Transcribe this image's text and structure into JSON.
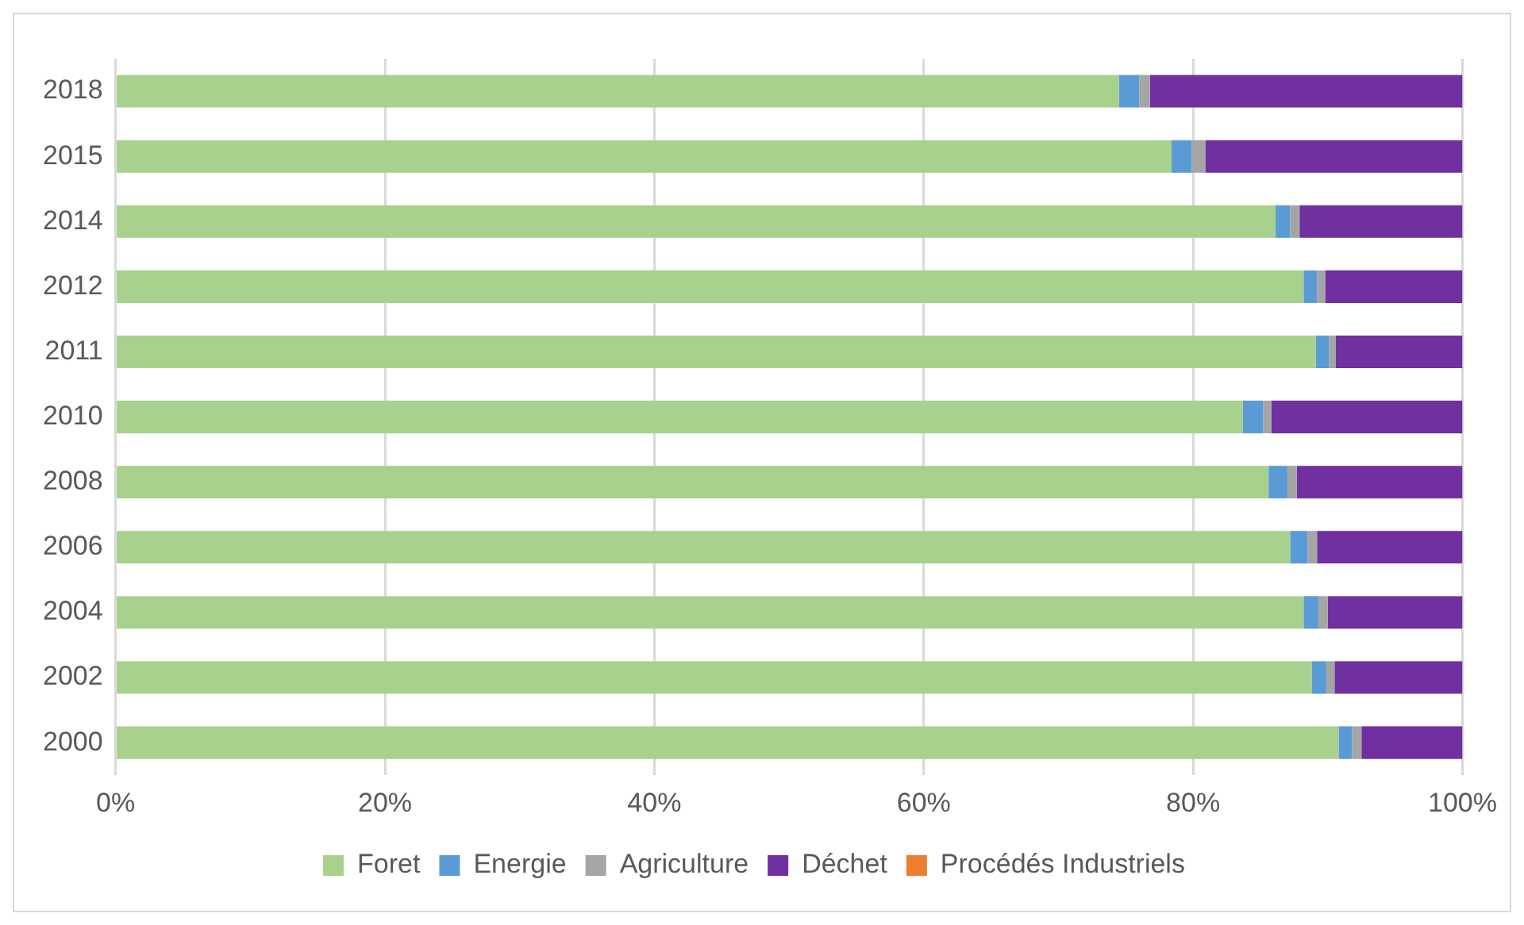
{
  "chart_data": {
    "type": "bar",
    "orientation": "horizontal",
    "stacked": true,
    "categories": [
      "2018",
      "2015",
      "2014",
      "2012",
      "2011",
      "2010",
      "2008",
      "2006",
      "2004",
      "2002",
      "2000"
    ],
    "series": [
      {
        "name": "Foret",
        "color": "#a9d18e",
        "values": [
          74.5,
          78.4,
          86.1,
          88.2,
          89.1,
          83.7,
          85.6,
          87.2,
          88.2,
          88.8,
          90.8
        ]
      },
      {
        "name": "Energie",
        "color": "#5b9bd5",
        "values": [
          1.5,
          1.5,
          1.1,
          1.0,
          1.0,
          1.5,
          1.4,
          1.3,
          1.1,
          1.1,
          1.0
        ]
      },
      {
        "name": "Agriculture",
        "color": "#a5a5a5",
        "values": [
          0.8,
          1.0,
          0.7,
          0.6,
          0.5,
          0.6,
          0.7,
          0.7,
          0.7,
          0.6,
          0.7
        ]
      },
      {
        "name": "Déchet",
        "color": "#7030a0",
        "values": [
          23.2,
          19.1,
          12.1,
          10.2,
          9.4,
          14.2,
          12.3,
          10.8,
          10.0,
          9.5,
          7.5
        ]
      },
      {
        "name": "Procédés Industriels",
        "color": "#ed7d31",
        "values": [
          0,
          0,
          0,
          0,
          0,
          0,
          0,
          0,
          0,
          0,
          0
        ]
      }
    ],
    "xlim": [
      0,
      100
    ],
    "xticks": [
      {
        "value": 0,
        "label": "0%"
      },
      {
        "value": 20,
        "label": "20%"
      },
      {
        "value": 40,
        "label": "40%"
      },
      {
        "value": 60,
        "label": "60%"
      },
      {
        "value": 80,
        "label": "80%"
      },
      {
        "value": 100,
        "label": "100%"
      }
    ],
    "grid": "x",
    "legend": "bottom"
  }
}
